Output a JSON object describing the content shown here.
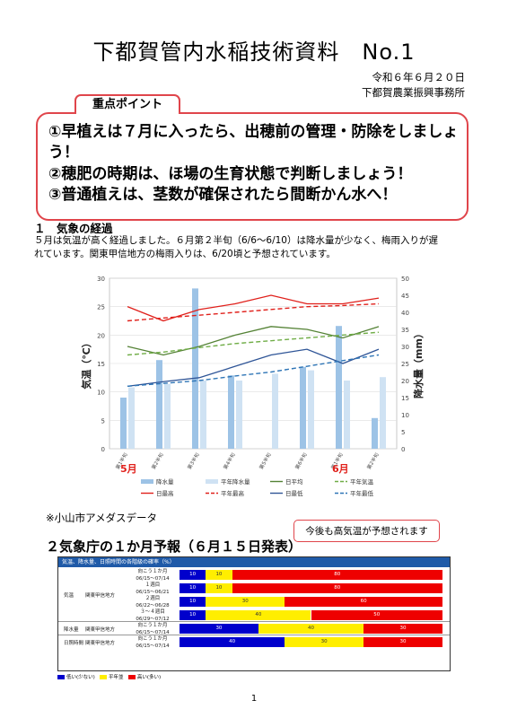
{
  "header": {
    "title": "下都賀管内水稲技術資料　No.1",
    "date": "令和６年６月２０日",
    "office": "下都賀農業振興事務所"
  },
  "key_points": {
    "label": "重点ポイント",
    "items": [
      "①早植えは７月に入ったら、出穂前の管理・防除をしましょう！",
      "②穂肥の時期は、ほ場の生育状態で判断しましょう！",
      "③普通植えは、茎数が確保されたら間断かん水へ！"
    ]
  },
  "section1": {
    "heading": "１　気象の経過",
    "body": "５月は気温が高く経過しました。６月第２半旬（6/6～6/10）は降水量が少なく、梅雨入りが遅れています。関東甲信地方の梅雨入りは、6/20頃と予想されています。"
  },
  "chart_data": {
    "type": "bar",
    "categories": [
      "第1半旬",
      "第2半旬",
      "第3半旬",
      "第4半旬",
      "第5半旬",
      "第6半旬",
      "第1半旬",
      "第2半旬"
    ],
    "month_labels": [
      "5月",
      "6月"
    ],
    "ylabel_left": "気温（℃）",
    "ylabel_right": "降水量（mm）",
    "ylim_left": [
      0,
      30
    ],
    "ylim_right": [
      0,
      50
    ],
    "ticks_left": [
      "0",
      "5",
      "10",
      "15",
      "20",
      "25",
      "30"
    ],
    "ticks_right": [
      "0",
      "5",
      "10",
      "15",
      "20",
      "25",
      "30",
      "35",
      "40",
      "45",
      "50"
    ],
    "series": [
      {
        "name": "降水量",
        "axis": "right",
        "kind": "bar",
        "values": [
          15,
          26,
          47,
          21.5,
          0,
          24,
          36,
          9
        ]
      },
      {
        "name": "平年降水量",
        "axis": "right",
        "kind": "bar",
        "values": [
          18,
          19,
          20,
          20,
          22,
          23,
          20,
          21
        ]
      },
      {
        "name": "日平均",
        "axis": "left",
        "kind": "line",
        "values": [
          18,
          16.5,
          18,
          20,
          21.5,
          21,
          19.5,
          21.5
        ]
      },
      {
        "name": "平年気温",
        "axis": "left",
        "kind": "dash",
        "values": [
          16.5,
          17,
          17.8,
          18.5,
          19,
          19.5,
          20,
          20.5
        ]
      },
      {
        "name": "日最高",
        "axis": "left",
        "kind": "line",
        "values": [
          25,
          22.5,
          24.5,
          25.5,
          27,
          25.5,
          25.5,
          26.5
        ]
      },
      {
        "name": "平年最高",
        "axis": "left",
        "kind": "dash",
        "values": [
          22.5,
          23,
          23.5,
          24,
          24.5,
          25,
          25.2,
          25.5
        ]
      },
      {
        "name": "日最低",
        "axis": "left",
        "kind": "line",
        "values": [
          11,
          11.8,
          12.5,
          14.5,
          16.5,
          17.5,
          15,
          17.5
        ]
      },
      {
        "name": "平年最低",
        "axis": "left",
        "kind": "dash",
        "values": [
          11,
          11.5,
          12,
          12.8,
          13.5,
          14.5,
          15.5,
          16.5
        ]
      }
    ],
    "colors": {
      "降水量": "#9dc3e6",
      "平年降水量": "#cfe2f3",
      "日平均": "#548235",
      "平年気温": "#70ad47",
      "日最高": "#e0201b",
      "平年最高": "#e0201b",
      "日最低": "#2f5597",
      "平年最低": "#2e75b6"
    },
    "grid": true
  },
  "amedas_note": "※小山市アメダスデータ",
  "section2": {
    "heading": "２気象庁の１か月予報（６月１５日発表）",
    "callout": "今後も高気温が予想されます"
  },
  "forecast_table": {
    "header": "気温、降水量、日照時間の各階級の確率（%）",
    "groups": [
      {
        "label": "気温",
        "region": "関東甲信地方",
        "rows": [
          {
            "period": "向こう１か月",
            "dates": "06/15～07/14",
            "values": [
              10,
              10,
              80
            ]
          },
          {
            "period": "１週目",
            "dates": "06/15～06/21",
            "values": [
              10,
              10,
              80
            ]
          },
          {
            "period": "２週目",
            "dates": "06/22～06/28",
            "values": [
              10,
              30,
              60
            ]
          },
          {
            "period": "３～４週目",
            "dates": "06/29～07/12",
            "values": [
              10,
              40,
              50
            ]
          }
        ]
      },
      {
        "label": "降水量",
        "region": "関東甲信地方",
        "rows": [
          {
            "period": "向こう１か月",
            "dates": "06/15～07/14",
            "values": [
              30,
              40,
              30
            ]
          }
        ]
      },
      {
        "label": "日照時間",
        "region": "関東甲信地方",
        "rows": [
          {
            "period": "向こう１か月",
            "dates": "06/15～07/14",
            "values": [
              40,
              30,
              30
            ]
          }
        ]
      }
    ],
    "legend": [
      "低い(少ない)",
      "平年並",
      "高い(多い)"
    ],
    "colors": {
      "low": "#0000cc",
      "normal": "#ffee00",
      "high": "#ee0000"
    }
  },
  "page_number": "1"
}
